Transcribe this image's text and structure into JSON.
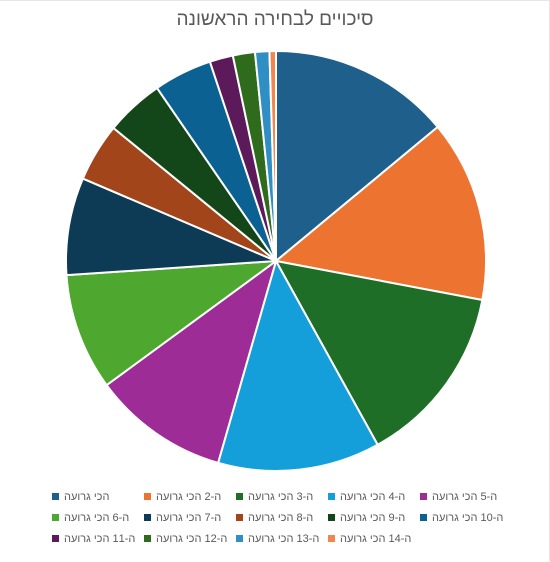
{
  "chart_data": {
    "type": "pie",
    "title": "סיכויים לבחירה הראשונה",
    "categories": [
      "הכי גרועה",
      "ה-2 הכי גרועה",
      "ה-3 הכי גרועה",
      "ה-4 הכי גרועה",
      "ה-5 הכי גרועה",
      "ה-6 הכי גרועה",
      "ה-7 הכי גרועה",
      "ה-8 הכי גרועה",
      "ה-9 הכי גרועה",
      "ה-10 הכי גרועה",
      "ה-11 הכי גרועה",
      "ה-12 הכי גרועה",
      "ה-13 הכי גרועה",
      "ה-14 הכי גרועה"
    ],
    "values": [
      14.0,
      14.0,
      14.0,
      12.5,
      10.5,
      9.0,
      7.5,
      4.5,
      4.5,
      4.5,
      1.8,
      1.7,
      1.1,
      0.5
    ],
    "colors": [
      "#1F5F8B",
      "#ED7331",
      "#1E6E28",
      "#159FDA",
      "#9E2C97",
      "#4EA72E",
      "#0D3A55",
      "#A2451A",
      "#134719",
      "#0B6191",
      "#5D1A5A",
      "#2F6B1C",
      "#2F8FC4",
      "#F2864C"
    ],
    "legend_position": "bottom"
  }
}
